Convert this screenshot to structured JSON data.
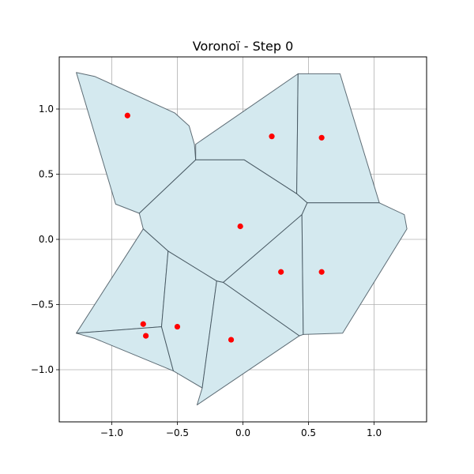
{
  "chart_data": {
    "type": "scatter",
    "title": "Voronoï - Step 0",
    "xlabel": "",
    "ylabel": "",
    "xlim": [
      -1.4,
      1.4
    ],
    "ylim": [
      -1.4,
      1.4
    ],
    "xticks": [
      -1.0,
      -0.5,
      0.0,
      0.5,
      1.0
    ],
    "yticks": [
      -1.0,
      -0.5,
      0.0,
      0.5,
      1.0
    ],
    "xtick_labels": [
      "−1.0",
      "−0.5",
      "0.0",
      "0.5",
      "1.0"
    ],
    "ytick_labels": [
      "−1.0",
      "−0.5",
      "0.0",
      "0.5",
      "1.0"
    ],
    "grid": true,
    "colors": {
      "cell_fill": "#d4e9ef",
      "cell_edge": "#2f3f4a",
      "point": "#ff0000",
      "grid": "#b0b0b0"
    },
    "points": [
      {
        "x": -0.88,
        "y": 0.95
      },
      {
        "x": 0.22,
        "y": 0.79
      },
      {
        "x": 0.6,
        "y": 0.78
      },
      {
        "x": -0.02,
        "y": 0.1
      },
      {
        "x": 0.29,
        "y": -0.25
      },
      {
        "x": 0.6,
        "y": -0.25
      },
      {
        "x": -0.76,
        "y": -0.65
      },
      {
        "x": -0.74,
        "y": -0.74
      },
      {
        "x": -0.5,
        "y": -0.67
      },
      {
        "x": -0.09,
        "y": -0.77
      }
    ],
    "cells": [
      [
        [
          -1.27,
          1.28
        ],
        [
          -1.13,
          1.25
        ],
        [
          -0.52,
          0.97
        ],
        [
          -0.41,
          0.87
        ],
        [
          -0.37,
          0.73
        ],
        [
          -0.36,
          0.61
        ],
        [
          -0.79,
          0.2
        ],
        [
          -0.97,
          0.27
        ]
      ],
      [
        [
          -0.36,
          0.61
        ],
        [
          -0.36,
          0.73
        ],
        [
          0.42,
          1.27
        ],
        [
          0.41,
          0.35
        ],
        [
          0.01,
          0.61
        ]
      ],
      [
        [
          0.42,
          1.27
        ],
        [
          0.74,
          1.27
        ],
        [
          1.04,
          0.28
        ],
        [
          0.49,
          0.28
        ],
        [
          0.41,
          0.35
        ]
      ],
      [
        [
          -0.36,
          0.61
        ],
        [
          0.01,
          0.61
        ],
        [
          0.41,
          0.35
        ],
        [
          0.49,
          0.28
        ],
        [
          0.45,
          0.19
        ],
        [
          -0.15,
          -0.33
        ],
        [
          -0.2,
          -0.32
        ],
        [
          -0.57,
          -0.09
        ],
        [
          -0.76,
          0.08
        ],
        [
          -0.79,
          0.2
        ]
      ],
      [
        [
          0.45,
          0.19
        ],
        [
          0.46,
          -0.73
        ],
        [
          0.43,
          -0.74
        ],
        [
          -0.15,
          -0.33
        ]
      ],
      [
        [
          0.49,
          0.28
        ],
        [
          1.04,
          0.28
        ],
        [
          1.23,
          0.19
        ],
        [
          1.25,
          0.08
        ],
        [
          0.76,
          -0.72
        ],
        [
          0.46,
          -0.73
        ],
        [
          0.45,
          0.19
        ]
      ],
      [
        [
          -0.76,
          0.08
        ],
        [
          -0.57,
          -0.09
        ],
        [
          -0.62,
          -0.67
        ],
        [
          -1.27,
          -0.72
        ]
      ],
      [
        [
          -1.27,
          -0.72
        ],
        [
          -0.62,
          -0.67
        ],
        [
          -0.53,
          -1.01
        ],
        [
          -1.13,
          -0.76
        ]
      ],
      [
        [
          -0.57,
          -0.09
        ],
        [
          -0.2,
          -0.32
        ],
        [
          -0.31,
          -1.14
        ],
        [
          -0.53,
          -1.01
        ],
        [
          -0.62,
          -0.67
        ]
      ],
      [
        [
          -0.2,
          -0.32
        ],
        [
          -0.15,
          -0.33
        ],
        [
          0.43,
          -0.74
        ],
        [
          -0.35,
          -1.27
        ],
        [
          -0.31,
          -1.14
        ]
      ]
    ]
  }
}
